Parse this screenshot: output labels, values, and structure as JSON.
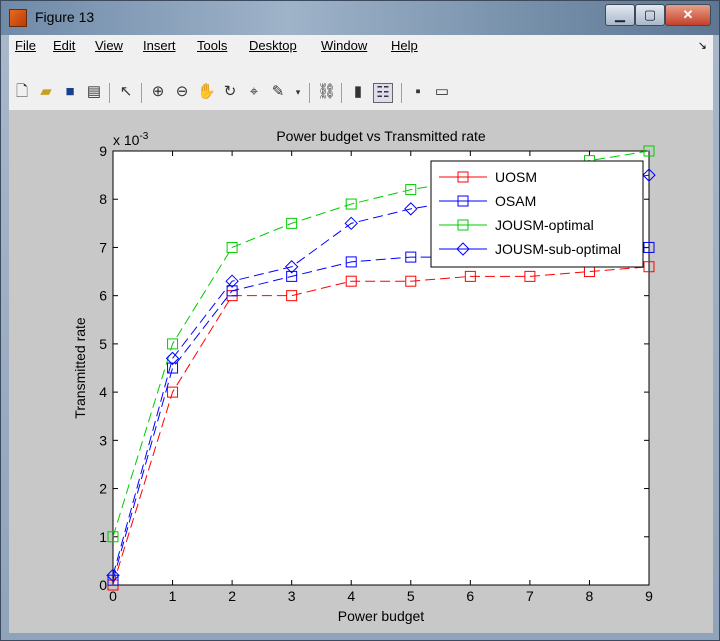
{
  "window": {
    "title": "Figure 13"
  },
  "menu": [
    "File",
    "Edit",
    "View",
    "Insert",
    "Tools",
    "Desktop",
    "Window",
    "Help"
  ],
  "toolbar": {
    "icons": [
      "new-figure-icon",
      "open-file-icon",
      "save-icon",
      "print-icon",
      "edit-pointer-icon",
      "zoom-in-icon",
      "zoom-out-icon",
      "pan-icon",
      "rotate-3d-icon",
      "data-cursor-icon",
      "brush-icon",
      "brush-dropdown-icon",
      "link-plot-icon",
      "colorbar-icon",
      "legend-icon",
      "hide-plot-tools-icon",
      "show-plot-tools-icon"
    ]
  },
  "colors": {
    "UOSM": "#ff0000",
    "OSAM": "#0000ff",
    "JOUSM-optimal": "#00cc00",
    "JOUSM-sub-optimal": "#0000ff"
  },
  "chart_data": {
    "type": "line",
    "title": "Power budget vs Transmitted rate",
    "xlabel": "Power budget",
    "ylabel": "Transmitted rate",
    "y_exponent_label": "x 10",
    "y_exponent": "-3",
    "xlim": [
      0,
      9
    ],
    "ylim": [
      0,
      9
    ],
    "xticks": [
      "0",
      "1",
      "2",
      "3",
      "4",
      "5",
      "6",
      "7",
      "8",
      "9"
    ],
    "yticks": [
      "0",
      "1",
      "2",
      "3",
      "4",
      "5",
      "6",
      "7",
      "8",
      "9"
    ],
    "x": [
      0,
      1,
      2,
      3,
      4,
      5,
      6,
      7,
      8,
      9
    ],
    "legend_position": "top-right",
    "series": [
      {
        "name": "UOSM",
        "marker": "square",
        "color": "#ff0000",
        "values": [
          0,
          4.0,
          6.0,
          6.0,
          6.3,
          6.3,
          6.4,
          6.4,
          6.5,
          6.6
        ]
      },
      {
        "name": "OSAM",
        "marker": "square",
        "color": "#0000ff",
        "values": [
          0.1,
          4.5,
          6.1,
          6.4,
          6.7,
          6.8,
          6.8,
          6.8,
          6.9,
          7.0
        ]
      },
      {
        "name": "JOUSM-optimal",
        "marker": "square",
        "color": "#00cc00",
        "values": [
          1.0,
          5.0,
          7.0,
          7.5,
          7.9,
          8.2,
          8.4,
          8.6,
          8.8,
          9.0
        ]
      },
      {
        "name": "JOUSM-sub-optimal",
        "marker": "diamond",
        "color": "#0000ff",
        "values": [
          0.2,
          4.7,
          6.3,
          6.6,
          7.5,
          7.8,
          8.0,
          8.2,
          8.3,
          8.5
        ]
      }
    ]
  }
}
